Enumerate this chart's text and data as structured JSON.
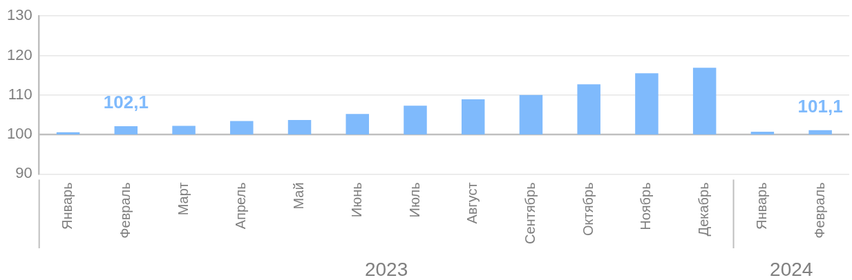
{
  "chart_data": {
    "type": "bar",
    "categories": [
      "Январь",
      "Февраль",
      "Март",
      "Апрель",
      "Май",
      "Июнь",
      "Июль",
      "Август",
      "Сентябрь",
      "Октябрь",
      "Ноябрь",
      "Декабрь",
      "Январь",
      "Февраль"
    ],
    "base": [
      100,
      100,
      100,
      100,
      100,
      100,
      100,
      100,
      100,
      100,
      100,
      100,
      100,
      100
    ],
    "values": [
      0.6,
      2.1,
      2.2,
      3.4,
      3.7,
      5.2,
      7.3,
      8.9,
      10.0,
      12.7,
      15.5,
      16.9,
      0.7,
      1.1
    ],
    "value_labels": [
      null,
      "102,1",
      null,
      null,
      null,
      null,
      null,
      null,
      null,
      null,
      null,
      null,
      null,
      "101,1"
    ],
    "color": "#7fbafc",
    "ylim": [
      90,
      130
    ],
    "yticks": [
      90,
      100,
      110,
      120,
      130
    ],
    "grid": "y",
    "ref_lines": [
      {
        "axis": "y",
        "value": 100,
        "color": "#bfbfbf"
      }
    ],
    "annotations": [
      "2023",
      "2024"
    ]
  }
}
